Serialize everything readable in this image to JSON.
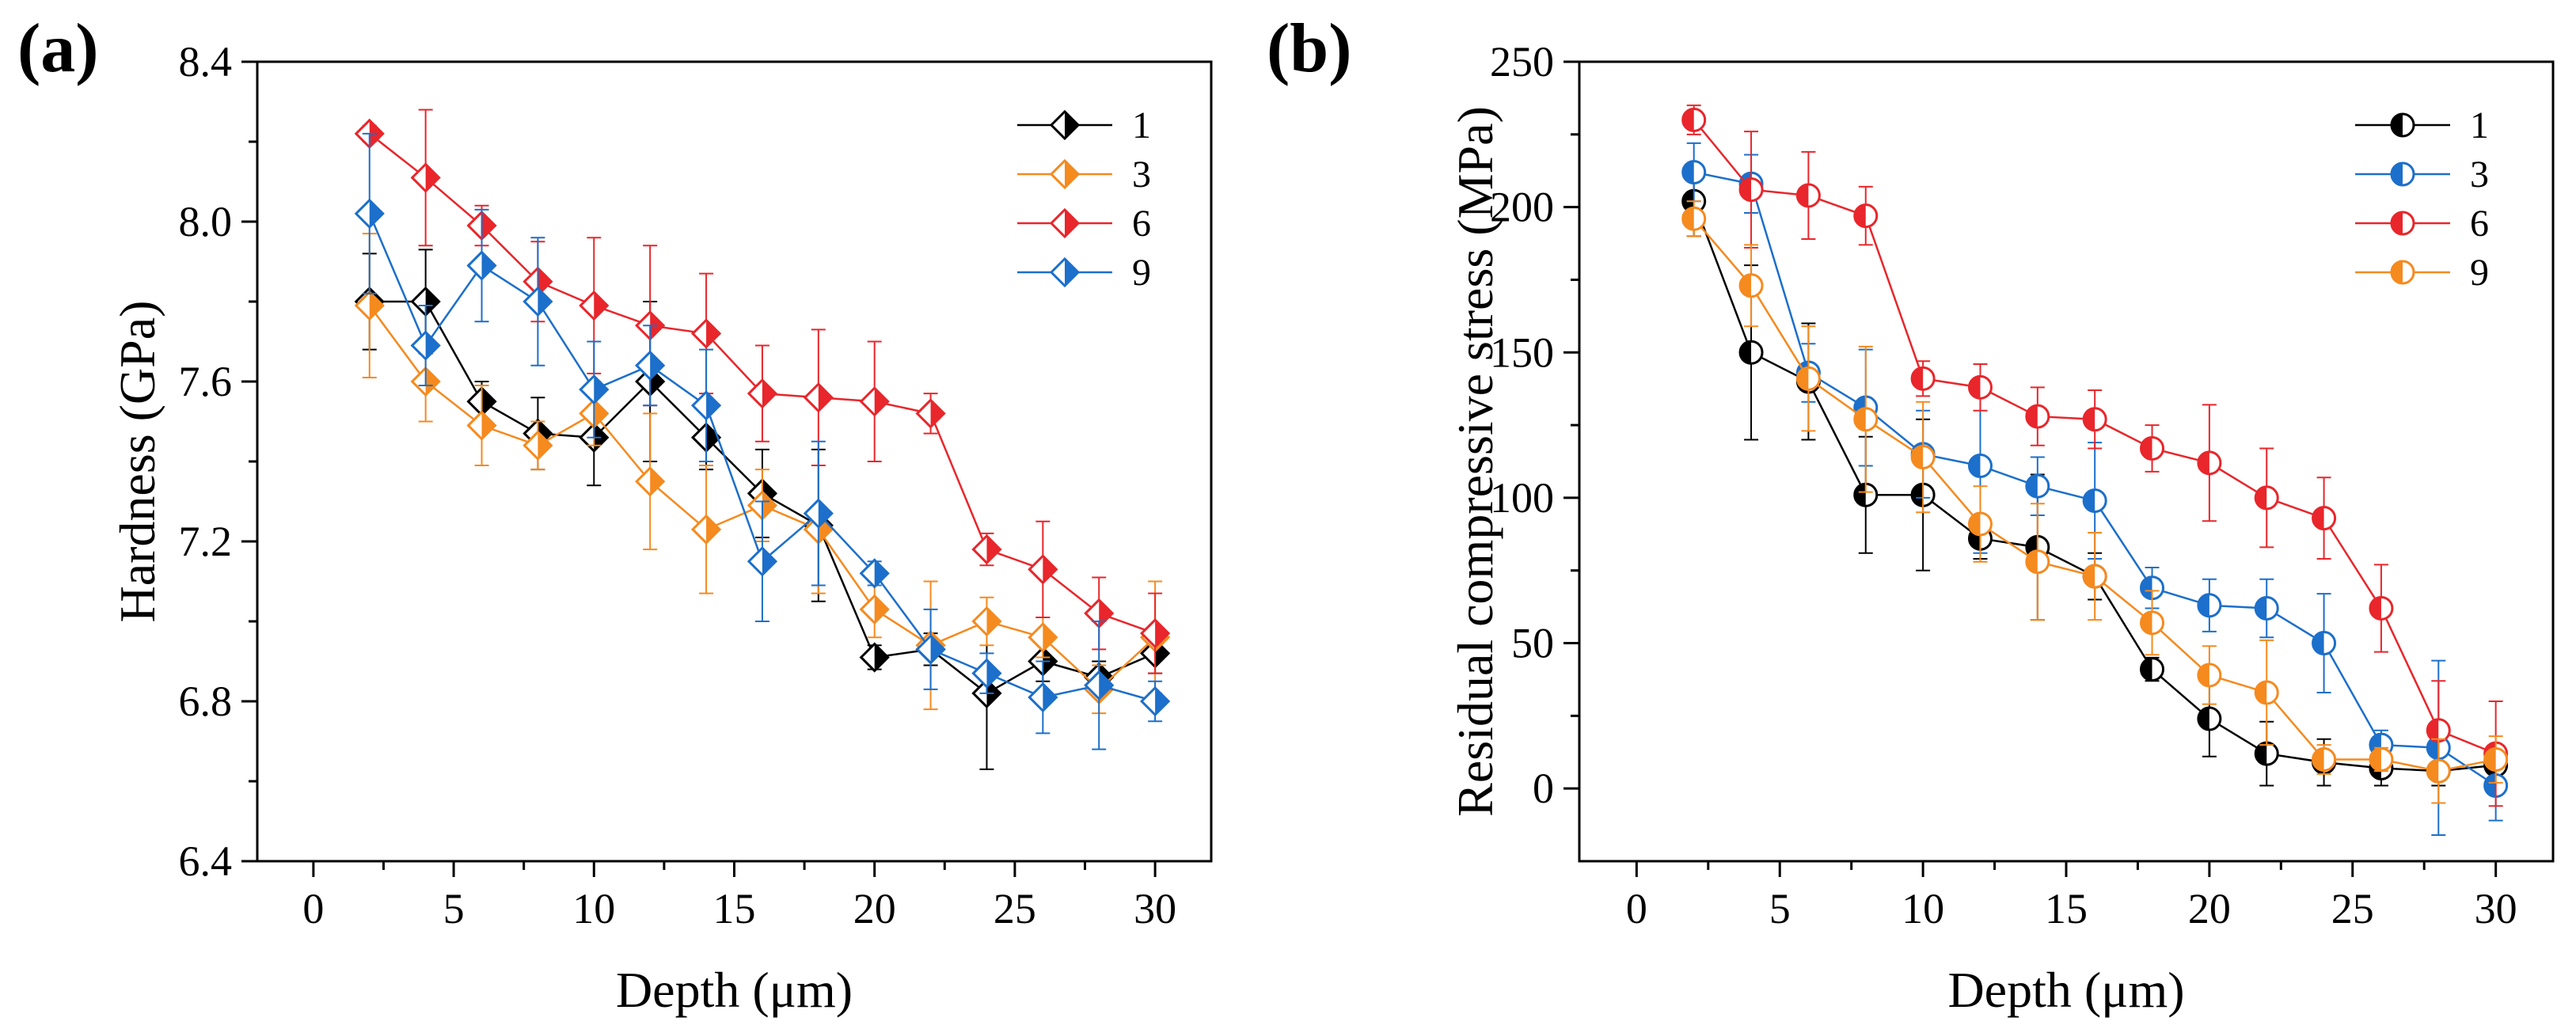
{
  "chart_data": [
    {
      "panel_label": "(a)",
      "type": "line",
      "marker": "diamond",
      "xlabel": "Depth (μm)",
      "ylabel": "Hardness (GPa)",
      "xlim": [
        -2,
        32
      ],
      "ylim": [
        6.4,
        8.4
      ],
      "xticks": [
        0,
        5,
        10,
        15,
        20,
        25,
        30
      ],
      "xtick_labels": [
        "0",
        "5",
        "10",
        "15",
        "20",
        "25",
        "30"
      ],
      "yticks": [
        6.4,
        6.8,
        7.2,
        7.6,
        8.0,
        8.4
      ],
      "ytick_labels": [
        "6.4",
        "6.8",
        "7.2",
        "7.6",
        "8.0",
        "8.4"
      ],
      "legend_position": "top-right",
      "series": [
        {
          "name": "1",
          "color": "#000000",
          "x": [
            2,
            4,
            6,
            8,
            10,
            12,
            14,
            16,
            18,
            20,
            22,
            24,
            26,
            28,
            30
          ],
          "y": [
            7.8,
            7.8,
            7.55,
            7.47,
            7.46,
            7.6,
            7.46,
            7.32,
            7.24,
            6.91,
            6.93,
            6.82,
            6.9,
            6.86,
            6.92
          ],
          "err": [
            0.12,
            0.13,
            0.05,
            0.09,
            0.12,
            0.2,
            0.08,
            0.11,
            0.19,
            0.03,
            0.04,
            0.19,
            0.05,
            0.04,
            0.05
          ]
        },
        {
          "name": "3",
          "color": "#F58A1F",
          "x": [
            2,
            4,
            6,
            8,
            10,
            12,
            14,
            16,
            18,
            20,
            22,
            24,
            26,
            28,
            30
          ],
          "y": [
            7.79,
            7.6,
            7.49,
            7.44,
            7.52,
            7.35,
            7.23,
            7.29,
            7.23,
            7.03,
            6.94,
            7.0,
            6.96,
            6.83,
            6.96
          ],
          "err": [
            0.18,
            0.1,
            0.1,
            0.06,
            0.08,
            0.17,
            0.16,
            0.09,
            0.16,
            0.07,
            0.16,
            0.06,
            0.05,
            0.06,
            0.14
          ]
        },
        {
          "name": "6",
          "color": "#E8262B",
          "x": [
            2,
            4,
            6,
            8,
            10,
            12,
            14,
            16,
            18,
            20,
            22,
            24,
            26,
            28,
            30
          ],
          "y": [
            8.22,
            8.11,
            7.99,
            7.85,
            7.79,
            7.74,
            7.72,
            7.57,
            7.56,
            7.55,
            7.52,
            7.18,
            7.13,
            7.02,
            6.97
          ],
          "err": [
            0.02,
            0.17,
            0.05,
            0.1,
            0.17,
            0.2,
            0.15,
            0.12,
            0.17,
            0.15,
            0.05,
            0.04,
            0.12,
            0.09,
            0.1
          ]
        },
        {
          "name": "9",
          "color": "#1C6FCA",
          "x": [
            2,
            4,
            6,
            8,
            10,
            12,
            14,
            16,
            18,
            20,
            22,
            24,
            26,
            28,
            30
          ],
          "y": [
            8.02,
            7.69,
            7.89,
            7.8,
            7.58,
            7.64,
            7.54,
            7.15,
            7.27,
            7.12,
            6.93,
            6.87,
            6.81,
            6.84,
            6.8
          ],
          "err": [
            0.2,
            0.1,
            0.14,
            0.16,
            0.12,
            0.1,
            0.14,
            0.15,
            0.18,
            0.03,
            0.1,
            0.05,
            0.09,
            0.16,
            0.05
          ]
        }
      ],
      "legend": [
        "1",
        "3",
        "6",
        "9"
      ]
    },
    {
      "panel_label": "(b)",
      "type": "line",
      "marker": "circle",
      "xlabel": "Depth (μm)",
      "ylabel": "Residual compressive stress (MPa)",
      "xlim": [
        -2,
        32
      ],
      "ylim": [
        -25,
        250
      ],
      "xticks": [
        0,
        5,
        10,
        15,
        20,
        25,
        30
      ],
      "xtick_labels": [
        "0",
        "5",
        "10",
        "15",
        "20",
        "25",
        "30"
      ],
      "yticks": [
        0,
        50,
        100,
        150,
        200,
        250
      ],
      "ytick_labels": [
        "0",
        "50",
        "100",
        "150",
        "200",
        "250"
      ],
      "legend_position": "top-right",
      "series": [
        {
          "name": "1",
          "color": "#000000",
          "x": [
            2,
            4,
            6,
            8,
            10,
            12,
            14,
            16,
            18,
            20,
            22,
            24,
            26,
            28,
            30
          ],
          "y": [
            202,
            150,
            140,
            101,
            101,
            86,
            83,
            73,
            41,
            24,
            12,
            9,
            7,
            6,
            8
          ],
          "err": [
            12,
            30,
            20,
            20,
            26,
            7,
            25,
            8,
            4,
            13,
            11,
            8,
            6,
            5,
            5
          ]
        },
        {
          "name": "3",
          "color": "#1C6FCA",
          "x": [
            2,
            4,
            6,
            8,
            10,
            12,
            14,
            16,
            18,
            20,
            22,
            24,
            26,
            28,
            30
          ],
          "y": [
            212,
            208,
            143,
            131,
            115,
            111,
            104,
            99,
            69,
            63,
            62,
            50,
            15,
            14,
            1
          ],
          "err": [
            10,
            10,
            10,
            20,
            15,
            30,
            10,
            20,
            7,
            9,
            10,
            17,
            5,
            30,
            12
          ]
        },
        {
          "name": "6",
          "color": "#E8262B",
          "x": [
            2,
            4,
            6,
            8,
            10,
            12,
            14,
            16,
            18,
            20,
            22,
            24,
            26,
            28,
            30
          ],
          "y": [
            230,
            206,
            204,
            197,
            141,
            138,
            128,
            127,
            117,
            112,
            100,
            93,
            62,
            20,
            12
          ],
          "err": [
            5,
            20,
            15,
            10,
            6,
            8,
            10,
            10,
            8,
            20,
            17,
            14,
            15,
            17,
            18
          ]
        },
        {
          "name": "9",
          "color": "#F58A1F",
          "x": [
            2,
            4,
            6,
            8,
            10,
            12,
            14,
            16,
            18,
            20,
            22,
            24,
            26,
            28,
            30
          ],
          "y": [
            196,
            173,
            141,
            127,
            114,
            91,
            78,
            73,
            57,
            39,
            33,
            10,
            10,
            6,
            10
          ],
          "err": [
            6,
            14,
            18,
            25,
            19,
            13,
            20,
            15,
            11,
            10,
            18,
            5,
            4,
            11,
            8
          ]
        }
      ],
      "legend": [
        "1",
        "3",
        "6",
        "9"
      ]
    }
  ]
}
